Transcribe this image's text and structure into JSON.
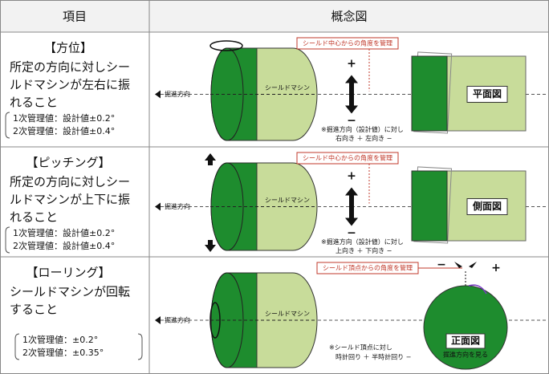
{
  "header": {
    "item": "項目",
    "concept": "概念図"
  },
  "rows": [
    {
      "title": "【方位】",
      "description": [
        "所定の方向に対しシー",
        "ルドマシンが左右に振",
        "れること"
      ],
      "management": [
        "1次管理値：設計値±0.2°",
        "2次管理値：設計値±0.4°"
      ],
      "diagram": {
        "machine": "シールドマシン",
        "direction": "掘進方向",
        "callout": "シールド中心からの角度を管理",
        "plus": "+",
        "minus": "−",
        "note": [
          "※掘進方向（設計値）に対し",
          "右向き ＋ 左向き −"
        ],
        "view": "平面図"
      }
    },
    {
      "title": "【ピッチング】",
      "description": [
        "所定の方向に対しシー",
        "ルドマシンが上下に振",
        "れること"
      ],
      "management": [
        "1次管理値：設計値±0.2°",
        "2次管理値：設計値±0.4°"
      ],
      "diagram": {
        "machine": "シールドマシン",
        "direction": "掘進方向",
        "callout": "シールド中心からの角度を管理",
        "plus": "+",
        "minus": "−",
        "note": [
          "※掘進方向（設計値）に対し",
          "上向き ＋ 下向き −"
        ],
        "view": "側面図"
      }
    },
    {
      "title": "【ローリング】",
      "description": [
        "シールドマシンが回転",
        "すること"
      ],
      "management": [
        "1次管理値：±0.2°",
        "2次管理値：±0.35°"
      ],
      "diagram": {
        "machine": "シールドマシン",
        "direction": "掘進方向",
        "callout": "シールド頂点からの角度を管理",
        "plus": "+",
        "minus": "−",
        "note": [
          "※シールド頂点に対し",
          "時計回り ＋ 半時計回り −"
        ],
        "view": "正面図",
        "view_sub": "掘進方向を見る"
      }
    }
  ]
}
